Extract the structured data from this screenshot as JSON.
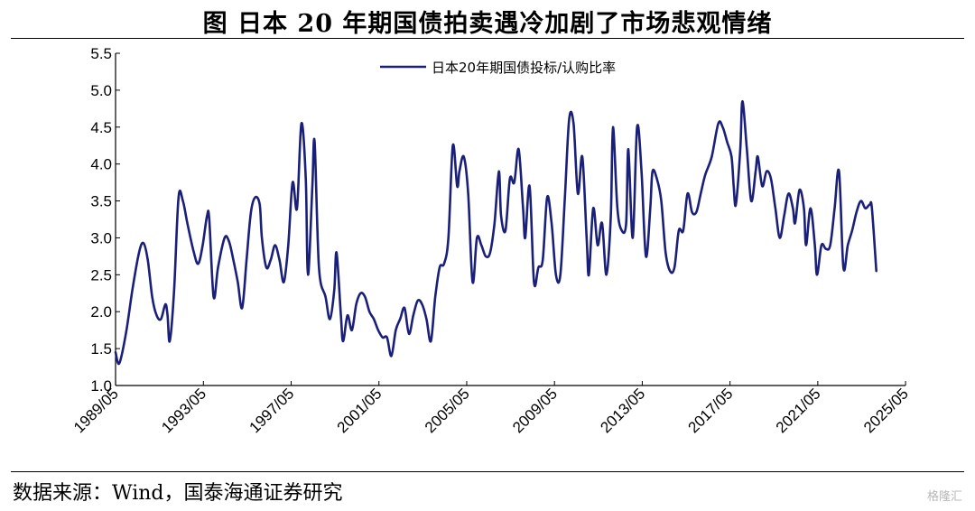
{
  "title": "图   日本 20 年期国债拍卖遇冷加剧了市场悲观情绪",
  "source": "数据来源：Wind，国泰海通证券研究",
  "watermark": "格隆汇",
  "chart_data": {
    "type": "line",
    "xlabel": "",
    "ylabel": "",
    "ylim": [
      1.0,
      5.5
    ],
    "yticks": [
      "1.0",
      "1.5",
      "2.0",
      "2.5",
      "3.0",
      "3.5",
      "4.0",
      "4.5",
      "5.0",
      "5.5"
    ],
    "xlim": [
      1989.33,
      2025.33
    ],
    "xticks": [
      "1989/05",
      "1993/05",
      "1997/05",
      "2001/05",
      "2005/05",
      "2009/05",
      "2013/05",
      "2017/05",
      "2021/05",
      "2025/05"
    ],
    "grid": false,
    "legend": "top-center",
    "series": [
      {
        "name": "日本20年期国债投标/认购比率",
        "color": "#1a1f7a",
        "points": [
          [
            1989.33,
            1.45
          ],
          [
            1989.5,
            1.3
          ],
          [
            1989.8,
            1.7
          ],
          [
            1990.1,
            2.3
          ],
          [
            1990.4,
            2.8
          ],
          [
            1990.6,
            2.93
          ],
          [
            1990.8,
            2.7
          ],
          [
            1991.0,
            2.2
          ],
          [
            1991.2,
            1.95
          ],
          [
            1991.4,
            1.9
          ],
          [
            1991.6,
            2.1
          ],
          [
            1991.7,
            1.95
          ],
          [
            1991.8,
            1.6
          ],
          [
            1992.0,
            2.3
          ],
          [
            1992.2,
            3.55
          ],
          [
            1992.4,
            3.5
          ],
          [
            1992.6,
            3.2
          ],
          [
            1992.9,
            2.8
          ],
          [
            1993.1,
            2.65
          ],
          [
            1993.3,
            2.9
          ],
          [
            1993.5,
            3.3
          ],
          [
            1993.6,
            3.25
          ],
          [
            1993.8,
            2.2
          ],
          [
            1994.0,
            2.6
          ],
          [
            1994.3,
            3.0
          ],
          [
            1994.5,
            2.95
          ],
          [
            1994.7,
            2.7
          ],
          [
            1994.9,
            2.4
          ],
          [
            1995.1,
            2.05
          ],
          [
            1995.3,
            2.7
          ],
          [
            1995.5,
            3.35
          ],
          [
            1995.7,
            3.55
          ],
          [
            1995.9,
            3.45
          ],
          [
            1996.0,
            3.0
          ],
          [
            1996.2,
            2.6
          ],
          [
            1996.4,
            2.7
          ],
          [
            1996.6,
            2.9
          ],
          [
            1996.8,
            2.7
          ],
          [
            1997.0,
            2.4
          ],
          [
            1997.2,
            2.9
          ],
          [
            1997.4,
            3.75
          ],
          [
            1997.6,
            3.4
          ],
          [
            1997.8,
            4.55
          ],
          [
            1998.0,
            3.8
          ],
          [
            1998.1,
            2.5
          ],
          [
            1998.3,
            3.7
          ],
          [
            1998.4,
            4.3
          ],
          [
            1998.6,
            2.6
          ],
          [
            1998.9,
            2.2
          ],
          [
            1999.1,
            1.9
          ],
          [
            1999.3,
            2.3
          ],
          [
            1999.4,
            2.8
          ],
          [
            1999.6,
            1.95
          ],
          [
            1999.7,
            1.6
          ],
          [
            1999.9,
            1.95
          ],
          [
            2000.1,
            1.75
          ],
          [
            2000.3,
            2.1
          ],
          [
            2000.5,
            2.25
          ],
          [
            2000.7,
            2.2
          ],
          [
            2000.9,
            2.0
          ],
          [
            2001.1,
            1.9
          ],
          [
            2001.3,
            1.75
          ],
          [
            2001.5,
            1.65
          ],
          [
            2001.7,
            1.65
          ],
          [
            2001.9,
            1.4
          ],
          [
            2002.1,
            1.75
          ],
          [
            2002.3,
            1.9
          ],
          [
            2002.5,
            2.05
          ],
          [
            2002.7,
            1.7
          ],
          [
            2002.9,
            1.95
          ],
          [
            2003.1,
            2.15
          ],
          [
            2003.3,
            2.1
          ],
          [
            2003.5,
            1.9
          ],
          [
            2003.7,
            1.6
          ],
          [
            2003.9,
            2.2
          ],
          [
            2004.1,
            2.6
          ],
          [
            2004.3,
            2.65
          ],
          [
            2004.5,
            3.0
          ],
          [
            2004.7,
            4.25
          ],
          [
            2004.9,
            3.7
          ],
          [
            2005.0,
            3.9
          ],
          [
            2005.2,
            4.1
          ],
          [
            2005.4,
            3.6
          ],
          [
            2005.6,
            2.4
          ],
          [
            2005.8,
            3.0
          ],
          [
            2006.0,
            2.9
          ],
          [
            2006.2,
            2.75
          ],
          [
            2006.4,
            2.8
          ],
          [
            2006.6,
            3.2
          ],
          [
            2006.8,
            3.9
          ],
          [
            2006.9,
            3.3
          ],
          [
            2007.1,
            3.1
          ],
          [
            2007.3,
            3.8
          ],
          [
            2007.5,
            3.75
          ],
          [
            2007.7,
            4.2
          ],
          [
            2007.9,
            3.4
          ],
          [
            2008.0,
            3.0
          ],
          [
            2008.2,
            3.7
          ],
          [
            2008.4,
            2.4
          ],
          [
            2008.6,
            2.6
          ],
          [
            2008.8,
            2.7
          ],
          [
            2009.0,
            3.55
          ],
          [
            2009.2,
            3.2
          ],
          [
            2009.4,
            2.5
          ],
          [
            2009.6,
            2.5
          ],
          [
            2009.8,
            3.5
          ],
          [
            2010.0,
            4.6
          ],
          [
            2010.2,
            4.55
          ],
          [
            2010.4,
            3.6
          ],
          [
            2010.6,
            4.1
          ],
          [
            2010.8,
            3.0
          ],
          [
            2010.9,
            2.5
          ],
          [
            2011.1,
            3.4
          ],
          [
            2011.3,
            2.9
          ],
          [
            2011.5,
            3.2
          ],
          [
            2011.7,
            2.5
          ],
          [
            2011.9,
            3.3
          ],
          [
            2012.0,
            4.5
          ],
          [
            2012.2,
            3.4
          ],
          [
            2012.4,
            3.1
          ],
          [
            2012.6,
            3.2
          ],
          [
            2012.7,
            4.2
          ],
          [
            2012.9,
            3.0
          ],
          [
            2013.1,
            4.5
          ],
          [
            2013.3,
            3.9
          ],
          [
            2013.5,
            2.75
          ],
          [
            2013.7,
            3.4
          ],
          [
            2013.8,
            3.9
          ],
          [
            2014.0,
            3.8
          ],
          [
            2014.2,
            3.5
          ],
          [
            2014.4,
            2.8
          ],
          [
            2014.6,
            2.55
          ],
          [
            2014.8,
            2.6
          ],
          [
            2015.0,
            3.1
          ],
          [
            2015.2,
            3.1
          ],
          [
            2015.4,
            3.6
          ],
          [
            2015.6,
            3.35
          ],
          [
            2015.8,
            3.35
          ],
          [
            2016.0,
            3.6
          ],
          [
            2016.2,
            3.85
          ],
          [
            2016.5,
            4.1
          ],
          [
            2016.8,
            4.55
          ],
          [
            2017.0,
            4.5
          ],
          [
            2017.2,
            4.3
          ],
          [
            2017.4,
            4.1
          ],
          [
            2017.5,
            3.7
          ],
          [
            2017.6,
            3.45
          ],
          [
            2017.8,
            4.2
          ],
          [
            2017.9,
            4.85
          ],
          [
            2018.1,
            4.2
          ],
          [
            2018.3,
            3.5
          ],
          [
            2018.5,
            3.9
          ],
          [
            2018.6,
            4.1
          ],
          [
            2018.8,
            3.7
          ],
          [
            2019.0,
            3.9
          ],
          [
            2019.2,
            3.8
          ],
          [
            2019.4,
            3.4
          ],
          [
            2019.6,
            3.0
          ],
          [
            2019.8,
            3.3
          ],
          [
            2020.0,
            3.6
          ],
          [
            2020.2,
            3.4
          ],
          [
            2020.3,
            3.2
          ],
          [
            2020.5,
            3.65
          ],
          [
            2020.7,
            3.4
          ],
          [
            2020.8,
            2.9
          ],
          [
            2021.0,
            3.4
          ],
          [
            2021.2,
            2.9
          ],
          [
            2021.3,
            2.5
          ],
          [
            2021.5,
            2.9
          ],
          [
            2021.7,
            2.85
          ],
          [
            2021.9,
            2.9
          ],
          [
            2022.1,
            3.4
          ],
          [
            2022.3,
            3.9
          ],
          [
            2022.5,
            2.6
          ],
          [
            2022.7,
            2.9
          ],
          [
            2022.9,
            3.1
          ],
          [
            2023.1,
            3.35
          ],
          [
            2023.3,
            3.5
          ],
          [
            2023.5,
            3.4
          ],
          [
            2023.7,
            3.45
          ],
          [
            2023.8,
            3.4
          ],
          [
            2024.0,
            2.55
          ]
        ]
      }
    ]
  }
}
